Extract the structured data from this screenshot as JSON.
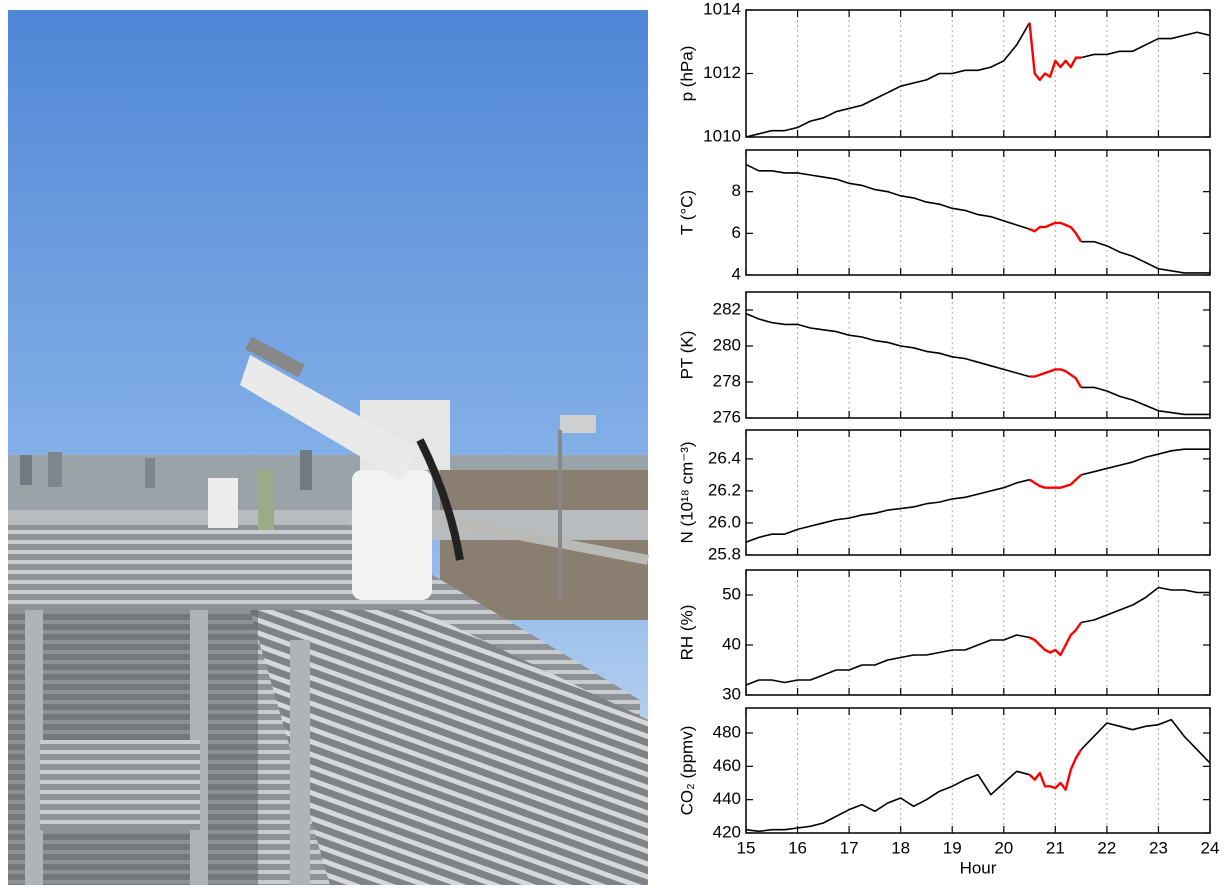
{
  "chart_data": [
    {
      "type": "line",
      "ylabel": "p (hPa)",
      "grid": "x",
      "x": [
        15,
        15.25,
        15.5,
        15.75,
        16,
        16.25,
        16.5,
        16.75,
        17,
        17.25,
        17.5,
        17.75,
        18,
        18.25,
        18.5,
        18.75,
        19,
        19.25,
        19.5,
        19.75,
        20,
        20.25,
        20.5,
        20.6,
        20.7,
        20.8,
        20.9,
        21,
        21.1,
        21.2,
        21.3,
        21.4,
        21.5,
        21.75,
        22,
        22.25,
        22.5,
        22.75,
        23,
        23.25,
        23.5,
        23.75,
        24
      ],
      "series": [
        {
          "color": "#000000",
          "values": [
            1010.0,
            1010.1,
            1010.2,
            1010.2,
            1010.3,
            1010.5,
            1010.6,
            1010.8,
            1010.9,
            1011.0,
            1011.2,
            1011.4,
            1011.6,
            1011.7,
            1011.8,
            1012.0,
            1012.0,
            1012.1,
            1012.1,
            1012.2,
            1012.4,
            1012.9,
            1013.6,
            null,
            null,
            null,
            null,
            null,
            null,
            null,
            null,
            null,
            1012.5,
            1012.6,
            1012.6,
            1012.7,
            1012.7,
            1012.9,
            1013.1,
            1013.1,
            1013.2,
            1013.3,
            1013.2
          ]
        },
        {
          "color": "#ff0000",
          "values": [
            null,
            null,
            null,
            null,
            null,
            null,
            null,
            null,
            null,
            null,
            null,
            null,
            null,
            null,
            null,
            null,
            null,
            null,
            null,
            null,
            null,
            null,
            1013.6,
            1012.0,
            1011.8,
            1012.0,
            1011.9,
            1012.4,
            1012.2,
            1012.4,
            1012.2,
            1012.5,
            1012.5,
            null,
            null,
            null,
            null,
            null,
            null,
            null,
            null,
            null,
            null
          ]
        }
      ],
      "xlim": [
        15,
        24
      ],
      "xticks": [
        15,
        16,
        17,
        18,
        19,
        20,
        21,
        22,
        23,
        24
      ],
      "ylim": [
        1010,
        1014
      ],
      "yticks": [
        1010,
        1012,
        1014
      ]
    },
    {
      "type": "line",
      "ylabel": "T (°C)",
      "grid": "x",
      "x": [
        15,
        15.25,
        15.5,
        15.75,
        16,
        16.25,
        16.5,
        16.75,
        17,
        17.25,
        17.5,
        17.75,
        18,
        18.25,
        18.5,
        18.75,
        19,
        19.25,
        19.5,
        19.75,
        20,
        20.25,
        20.5,
        20.6,
        20.7,
        20.8,
        20.9,
        21,
        21.1,
        21.2,
        21.3,
        21.4,
        21.5,
        21.75,
        22,
        22.25,
        22.5,
        22.75,
        23,
        23.25,
        23.5,
        23.75,
        24
      ],
      "series": [
        {
          "color": "#000000",
          "values": [
            9.3,
            9.0,
            9.0,
            8.9,
            8.9,
            8.8,
            8.7,
            8.6,
            8.4,
            8.3,
            8.1,
            8.0,
            7.8,
            7.7,
            7.5,
            7.4,
            7.2,
            7.1,
            6.9,
            6.8,
            6.6,
            6.4,
            6.2,
            null,
            null,
            null,
            null,
            null,
            null,
            null,
            null,
            null,
            5.6,
            5.6,
            5.4,
            5.1,
            4.9,
            4.6,
            4.3,
            4.2,
            4.1,
            4.1,
            4.1
          ]
        },
        {
          "color": "#ff0000",
          "values": [
            null,
            null,
            null,
            null,
            null,
            null,
            null,
            null,
            null,
            null,
            null,
            null,
            null,
            null,
            null,
            null,
            null,
            null,
            null,
            null,
            null,
            null,
            6.2,
            6.1,
            6.3,
            6.3,
            6.4,
            6.5,
            6.5,
            6.4,
            6.3,
            6.0,
            5.6,
            null,
            null,
            null,
            null,
            null,
            null,
            null,
            null,
            null,
            null
          ]
        }
      ],
      "xlim": [
        15,
        24
      ],
      "xticks": [
        15,
        16,
        17,
        18,
        19,
        20,
        21,
        22,
        23,
        24
      ],
      "ylim": [
        4,
        10
      ],
      "yticks": [
        4,
        6,
        8
      ]
    },
    {
      "type": "line",
      "ylabel": "PT (K)",
      "grid": "x",
      "x": [
        15,
        15.25,
        15.5,
        15.75,
        16,
        16.25,
        16.5,
        16.75,
        17,
        17.25,
        17.5,
        17.75,
        18,
        18.25,
        18.5,
        18.75,
        19,
        19.25,
        19.5,
        19.75,
        20,
        20.25,
        20.5,
        20.6,
        20.7,
        20.8,
        20.9,
        21,
        21.1,
        21.2,
        21.3,
        21.4,
        21.5,
        21.75,
        22,
        22.25,
        22.5,
        22.75,
        23,
        23.25,
        23.5,
        23.75,
        24
      ],
      "series": [
        {
          "color": "#000000",
          "values": [
            281.8,
            281.5,
            281.3,
            281.2,
            281.2,
            281.0,
            280.9,
            280.8,
            280.6,
            280.5,
            280.3,
            280.2,
            280.0,
            279.9,
            279.7,
            279.6,
            279.4,
            279.3,
            279.1,
            278.9,
            278.7,
            278.5,
            278.3,
            null,
            null,
            null,
            null,
            null,
            null,
            null,
            null,
            null,
            277.7,
            277.7,
            277.5,
            277.2,
            277.0,
            276.7,
            276.4,
            276.3,
            276.2,
            276.2,
            276.2
          ]
        },
        {
          "color": "#ff0000",
          "values": [
            null,
            null,
            null,
            null,
            null,
            null,
            null,
            null,
            null,
            null,
            null,
            null,
            null,
            null,
            null,
            null,
            null,
            null,
            null,
            null,
            null,
            null,
            278.3,
            278.3,
            278.4,
            278.5,
            278.6,
            278.7,
            278.7,
            278.6,
            278.4,
            278.2,
            277.7,
            null,
            null,
            null,
            null,
            null,
            null,
            null,
            null,
            null,
            null
          ]
        }
      ],
      "xlim": [
        15,
        24
      ],
      "xticks": [
        15,
        16,
        17,
        18,
        19,
        20,
        21,
        22,
        23,
        24
      ],
      "ylim": [
        276,
        283
      ],
      "yticks": [
        276,
        278,
        280,
        282
      ]
    },
    {
      "type": "line",
      "ylabel": "N (10¹⁸ cm⁻³)",
      "grid": "x",
      "x": [
        15,
        15.25,
        15.5,
        15.75,
        16,
        16.25,
        16.5,
        16.75,
        17,
        17.25,
        17.5,
        17.75,
        18,
        18.25,
        18.5,
        18.75,
        19,
        19.25,
        19.5,
        19.75,
        20,
        20.25,
        20.5,
        20.6,
        20.7,
        20.8,
        20.9,
        21,
        21.1,
        21.2,
        21.3,
        21.4,
        21.5,
        21.75,
        22,
        22.25,
        22.5,
        22.75,
        23,
        23.25,
        23.5,
        23.75,
        24
      ],
      "series": [
        {
          "color": "#000000",
          "values": [
            25.88,
            25.91,
            25.93,
            25.93,
            25.96,
            25.98,
            26.0,
            26.02,
            26.03,
            26.05,
            26.06,
            26.08,
            26.09,
            26.1,
            26.12,
            26.13,
            26.15,
            26.16,
            26.18,
            26.2,
            26.22,
            26.25,
            26.27,
            null,
            null,
            null,
            null,
            null,
            null,
            null,
            null,
            null,
            26.3,
            26.32,
            26.34,
            26.36,
            26.38,
            26.41,
            26.43,
            26.45,
            26.46,
            26.46,
            26.46
          ]
        },
        {
          "color": "#ff0000",
          "values": [
            null,
            null,
            null,
            null,
            null,
            null,
            null,
            null,
            null,
            null,
            null,
            null,
            null,
            null,
            null,
            null,
            null,
            null,
            null,
            null,
            null,
            null,
            26.27,
            26.25,
            26.23,
            26.22,
            26.22,
            26.22,
            26.22,
            26.23,
            26.24,
            26.27,
            26.3,
            null,
            null,
            null,
            null,
            null,
            null,
            null,
            null,
            null,
            null
          ]
        }
      ],
      "xlim": [
        15,
        24
      ],
      "xticks": [
        15,
        16,
        17,
        18,
        19,
        20,
        21,
        22,
        23,
        24
      ],
      "ylim": [
        25.8,
        26.58
      ],
      "yticks": [
        25.8,
        {
          "value": 26,
          "label": "26.0"
        },
        26.2,
        26.4
      ]
    },
    {
      "type": "line",
      "ylabel": "RH (%)",
      "grid": "x",
      "x": [
        15,
        15.25,
        15.5,
        15.75,
        16,
        16.25,
        16.5,
        16.75,
        17,
        17.25,
        17.5,
        17.75,
        18,
        18.25,
        18.5,
        18.75,
        19,
        19.25,
        19.5,
        19.75,
        20,
        20.25,
        20.5,
        20.6,
        20.7,
        20.8,
        20.9,
        21,
        21.1,
        21.2,
        21.3,
        21.4,
        21.5,
        21.75,
        22,
        22.25,
        22.5,
        22.75,
        23,
        23.25,
        23.5,
        23.75,
        24
      ],
      "series": [
        {
          "color": "#000000",
          "values": [
            32,
            33,
            33,
            32.5,
            33,
            33,
            34,
            35,
            35,
            36,
            36,
            37,
            37.5,
            38,
            38,
            38.5,
            39,
            39,
            40,
            41,
            41,
            42,
            41.5,
            null,
            null,
            null,
            null,
            null,
            null,
            null,
            null,
            null,
            44.5,
            45,
            46,
            47,
            48,
            49.5,
            51.5,
            51,
            51,
            50.5,
            50.5
          ]
        },
        {
          "color": "#ff0000",
          "values": [
            null,
            null,
            null,
            null,
            null,
            null,
            null,
            null,
            null,
            null,
            null,
            null,
            null,
            null,
            null,
            null,
            null,
            null,
            null,
            null,
            null,
            null,
            41.5,
            41,
            40,
            39,
            38.5,
            39,
            38,
            40,
            42,
            43,
            44.5,
            null,
            null,
            null,
            null,
            null,
            null,
            null,
            null,
            null,
            null
          ]
        }
      ],
      "xlim": [
        15,
        24
      ],
      "xticks": [
        15,
        16,
        17,
        18,
        19,
        20,
        21,
        22,
        23,
        24
      ],
      "ylim": [
        30,
        55
      ],
      "yticks": [
        30,
        40,
        50
      ]
    },
    {
      "type": "line",
      "ylabel": "CO₂ (ppmv)",
      "xlabel": "Hour",
      "grid": "x",
      "x": [
        15,
        15.25,
        15.5,
        15.75,
        16,
        16.25,
        16.5,
        16.75,
        17,
        17.25,
        17.5,
        17.75,
        18,
        18.25,
        18.5,
        18.75,
        19,
        19.25,
        19.5,
        19.75,
        20,
        20.25,
        20.5,
        20.6,
        20.7,
        20.8,
        20.9,
        21,
        21.1,
        21.2,
        21.3,
        21.4,
        21.5,
        21.75,
        22,
        22.25,
        22.5,
        22.75,
        23,
        23.25,
        23.5,
        23.75,
        24
      ],
      "series": [
        {
          "color": "#000000",
          "values": [
            422,
            421,
            422,
            422,
            423,
            424,
            426,
            430,
            434,
            437,
            433,
            438,
            441,
            436,
            440,
            445,
            448,
            452,
            455,
            443,
            450,
            457,
            455,
            null,
            null,
            null,
            null,
            null,
            null,
            null,
            null,
            null,
            470,
            478,
            486,
            484,
            482,
            484,
            485,
            488,
            478,
            470,
            462
          ]
        },
        {
          "color": "#ff0000",
          "values": [
            null,
            null,
            null,
            null,
            null,
            null,
            null,
            null,
            null,
            null,
            null,
            null,
            null,
            null,
            null,
            null,
            null,
            null,
            null,
            null,
            null,
            null,
            455,
            452,
            456,
            448,
            448,
            447,
            450,
            446,
            458,
            465,
            470,
            null,
            null,
            null,
            null,
            null,
            null,
            null,
            null,
            null,
            null
          ]
        }
      ],
      "xlim": [
        15,
        24
      ],
      "xticks": [
        15,
        16,
        17,
        18,
        19,
        20,
        21,
        22,
        23,
        24
      ],
      "ylim": [
        420,
        495
      ],
      "yticks": [
        420,
        440,
        460,
        480
      ]
    }
  ]
}
